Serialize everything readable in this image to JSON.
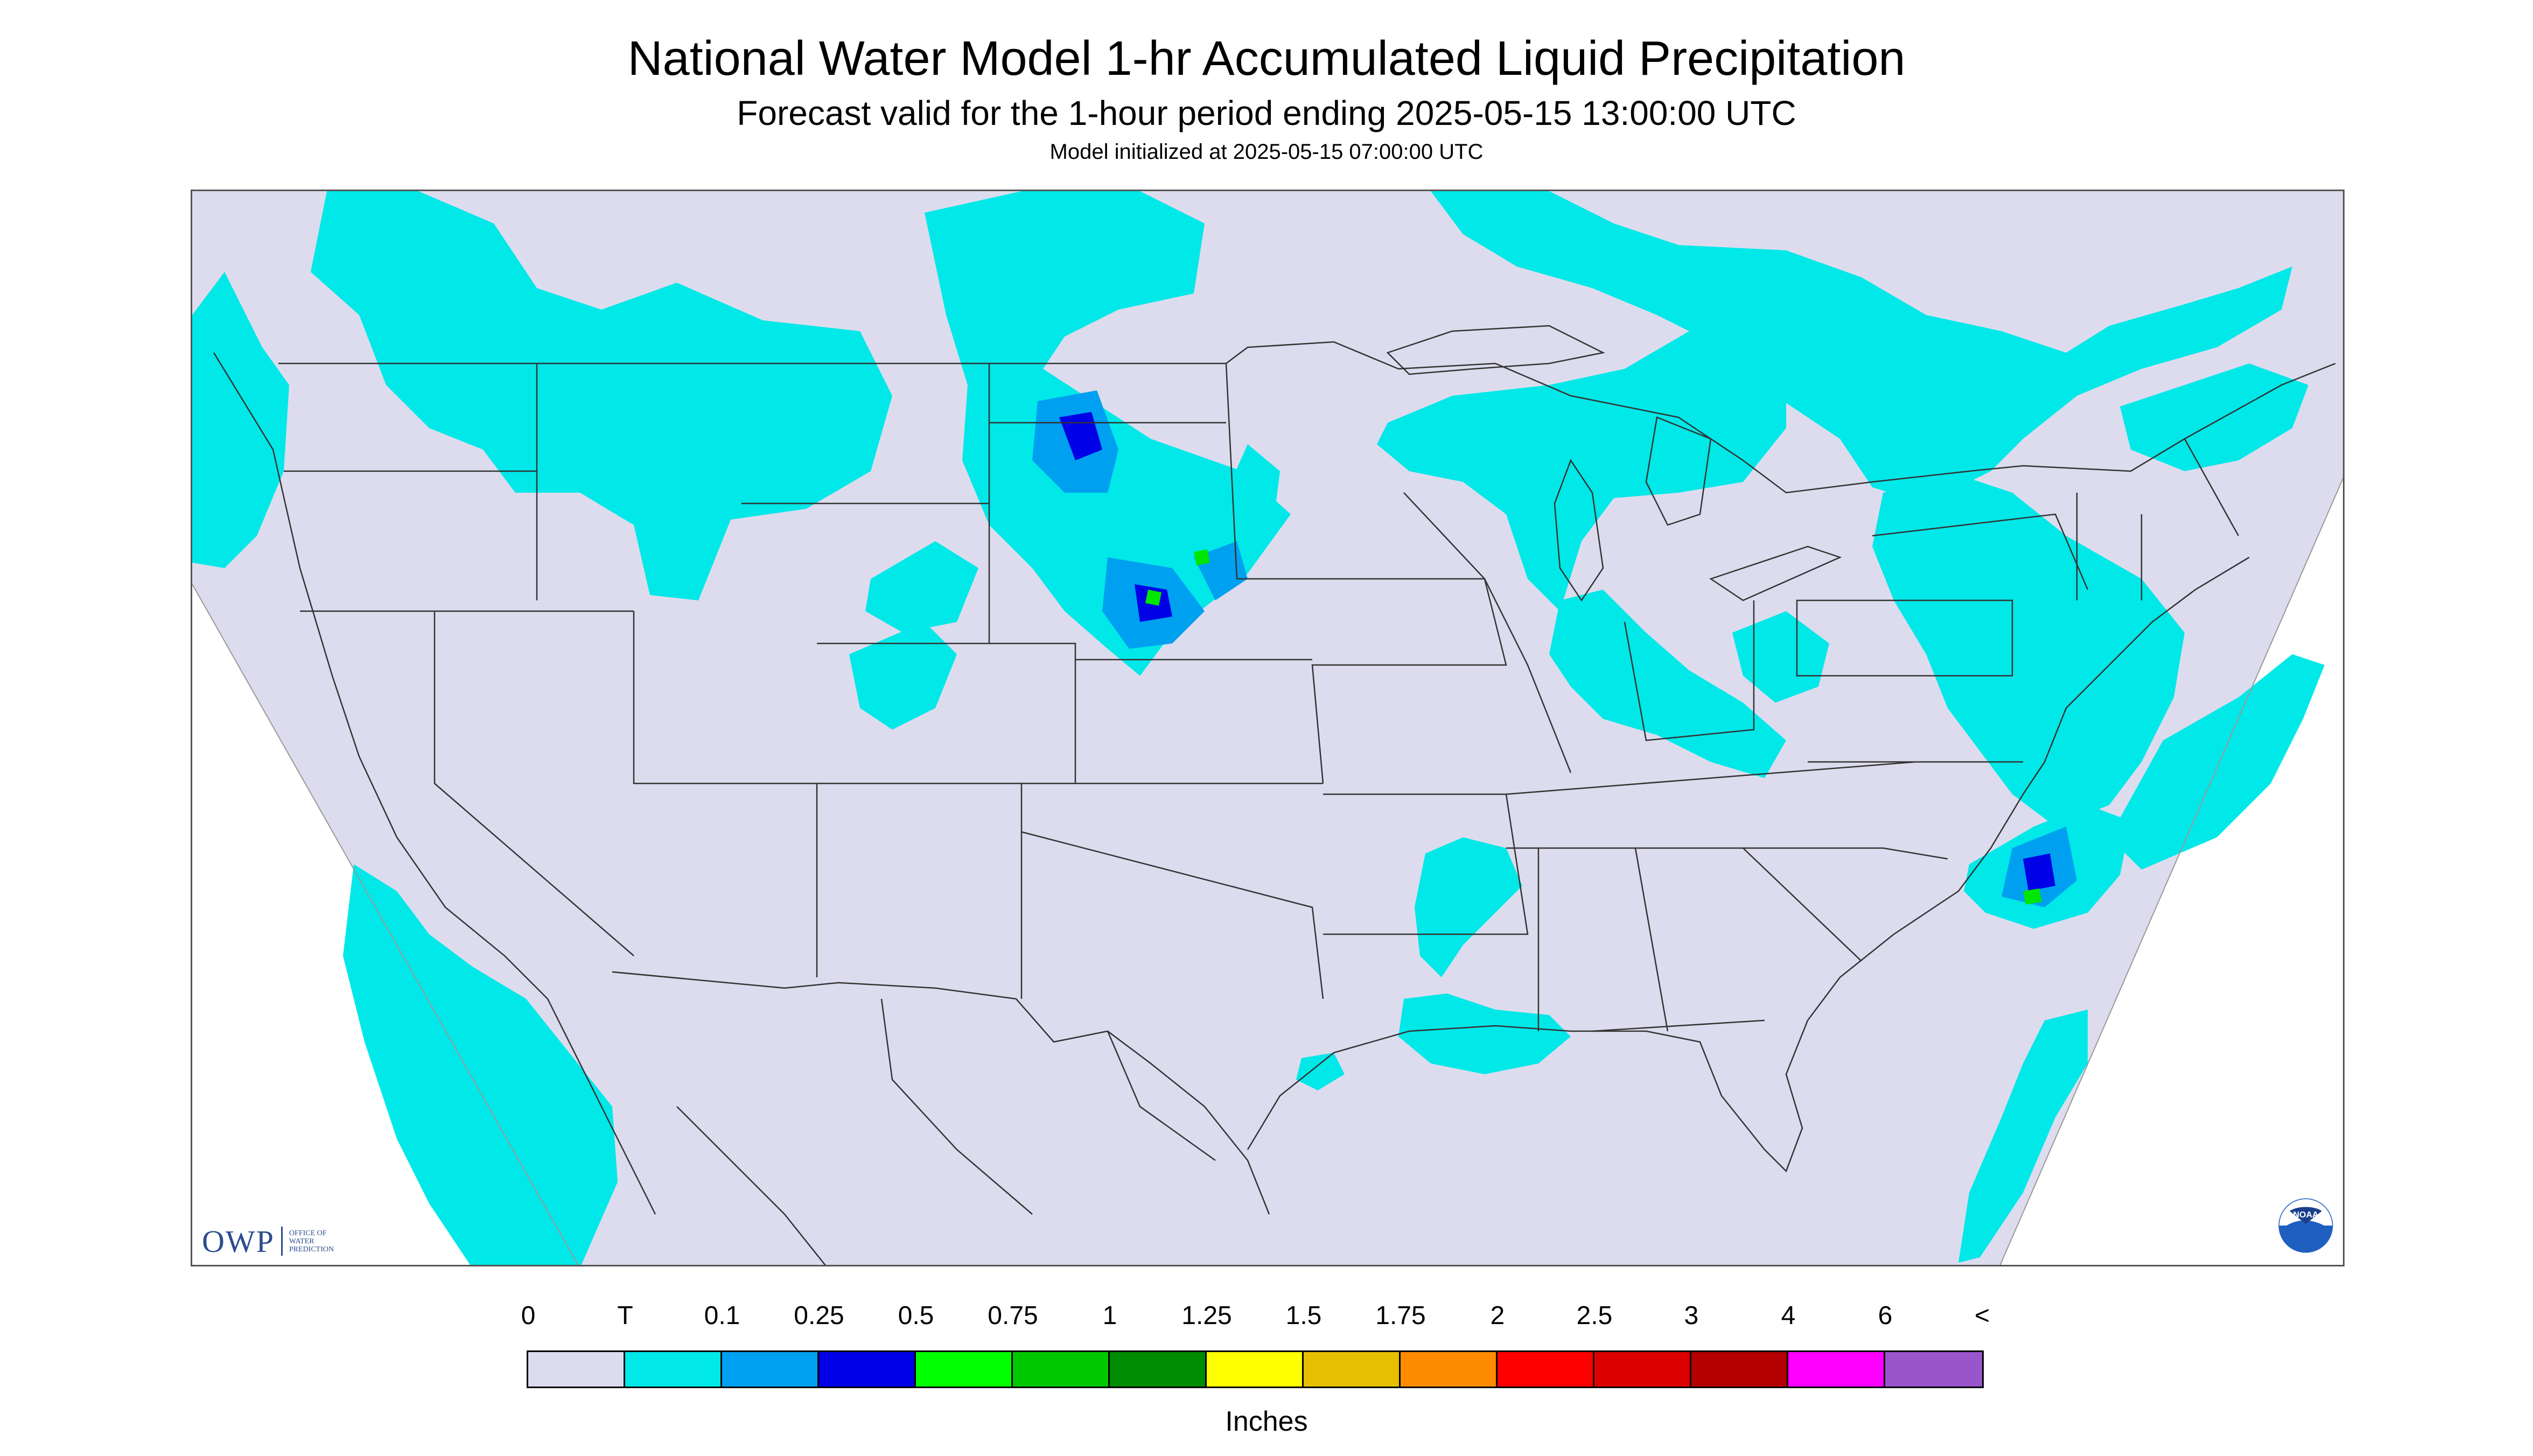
{
  "header": {
    "title": "National Water Model 1-hr Accumulated Liquid Precipitation",
    "subtitle": "Forecast valid for the 1-hour period ending 2025-05-15 13:00:00 UTC",
    "init": "Model initialized at 2025-05-15 07:00:00 UTC"
  },
  "colors": {
    "background": "#ffffff",
    "map_fill": "#dcdcee",
    "border_line": "#333333",
    "precip_trace": "#00e8e8",
    "precip_light": "#00a0f0",
    "precip_mod": "#0000e6",
    "precip_green": "#00e600"
  },
  "logos": {
    "owp_letters": "OWP",
    "owp_line1": "OFFICE OF",
    "owp_line2": "WATER",
    "owp_line3": "PREDICTION",
    "noaa_text": "NOAA"
  },
  "legend": {
    "units": "Inches",
    "labels": [
      "0",
      "T",
      "0.1",
      "0.25",
      "0.5",
      "0.75",
      "1",
      "1.25",
      "1.5",
      "1.75",
      "2",
      "2.5",
      "3",
      "4",
      "6",
      "<"
    ],
    "colors": [
      "#dcdcee",
      "#00e8e8",
      "#00a0f0",
      "#0000e6",
      "#00ff00",
      "#00c800",
      "#008c00",
      "#ffff00",
      "#e6c000",
      "#ff8c00",
      "#ff0000",
      "#dc0000",
      "#b40000",
      "#ff00ff",
      "#9955cc"
    ]
  },
  "precip_regions": [
    {
      "name": "pacific-northwest",
      "level": "T"
    },
    {
      "name": "northern-rockies",
      "level": "T"
    },
    {
      "name": "dakotas-nebraska",
      "level": "0.25"
    },
    {
      "name": "wyoming-colorado",
      "level": "T"
    },
    {
      "name": "upper-midwest-great-lakes",
      "level": "T"
    },
    {
      "name": "ontario-quebec",
      "level": "T"
    },
    {
      "name": "new-england-mid-atlantic",
      "level": "0.1"
    },
    {
      "name": "ohio-valley",
      "level": "T"
    },
    {
      "name": "lower-mississippi-valley",
      "level": "T"
    },
    {
      "name": "gulf-coast",
      "level": "T"
    },
    {
      "name": "carolina-offshore",
      "level": "0.75"
    },
    {
      "name": "baja-pacific",
      "level": "T"
    },
    {
      "name": "atlantic-offshore",
      "level": "T"
    }
  ]
}
